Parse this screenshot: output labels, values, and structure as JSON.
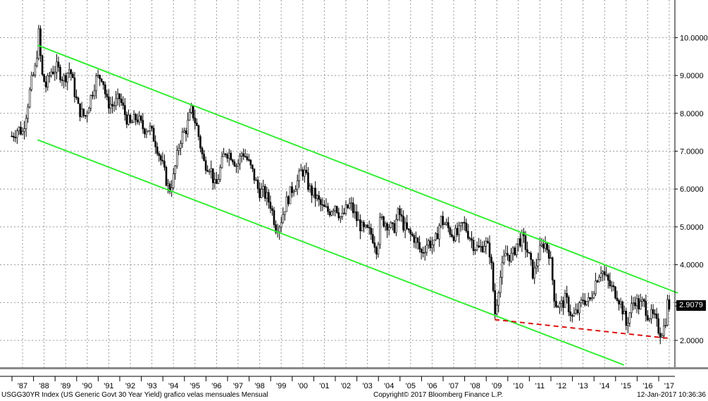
{
  "chart_data": {
    "type": "candlestick",
    "title": "",
    "xlabel": "",
    "ylabel": "",
    "ylim": [
      1.3,
      10.9
    ],
    "xlim": [
      1986.4,
      2017.4
    ],
    "y_ticks": [
      {
        "label": "2.0000",
        "value": 2.0
      },
      {
        "label": "3.0000",
        "value": 3.0
      },
      {
        "label": "4.0000",
        "value": 4.0
      },
      {
        "label": "5.0000",
        "value": 5.0
      },
      {
        "label": "6.0000",
        "value": 6.0
      },
      {
        "label": "7.0000",
        "value": 7.0
      },
      {
        "label": "8.0000",
        "value": 8.0
      },
      {
        "label": "9.0000",
        "value": 9.0
      },
      {
        "label": "10.0000",
        "value": 10.0
      }
    ],
    "x_ticks": [
      "'87",
      "'88",
      "'89",
      "'90",
      "'91",
      "'92",
      "'93",
      "'94",
      "'95",
      "'96",
      "'97",
      "'98",
      "'99",
      "'00",
      "'01",
      "'02",
      "'03",
      "'04",
      "'05",
      "'06",
      "'07",
      "'08",
      "'09",
      "'10",
      "'11",
      "'12",
      "'13",
      "'14",
      "'15",
      "'16",
      "'17"
    ],
    "grid": true,
    "series": [
      {
        "kind": "monthly-candles-close",
        "points": [
          [
            1986.5,
            7.4
          ],
          [
            1986.8,
            7.6
          ],
          [
            1987.0,
            7.5
          ],
          [
            1987.2,
            8.1
          ],
          [
            1987.4,
            8.8
          ],
          [
            1987.6,
            9.2
          ],
          [
            1987.75,
            10.1
          ],
          [
            1987.9,
            9.0
          ],
          [
            1988.1,
            8.7
          ],
          [
            1988.3,
            9.1
          ],
          [
            1988.6,
            9.2
          ],
          [
            1988.9,
            8.9
          ],
          [
            1989.2,
            9.2
          ],
          [
            1989.4,
            8.6
          ],
          [
            1989.6,
            8.1
          ],
          [
            1989.9,
            7.9
          ],
          [
            1990.1,
            8.3
          ],
          [
            1990.4,
            8.9
          ],
          [
            1990.7,
            9.0
          ],
          [
            1990.9,
            8.3
          ],
          [
            1991.2,
            8.2
          ],
          [
            1991.5,
            8.4
          ],
          [
            1991.8,
            7.9
          ],
          [
            1992.0,
            7.7
          ],
          [
            1992.3,
            7.9
          ],
          [
            1992.6,
            7.6
          ],
          [
            1992.9,
            7.6
          ],
          [
            1993.2,
            7.2
          ],
          [
            1993.5,
            6.6
          ],
          [
            1993.8,
            5.95
          ],
          [
            1994.0,
            6.3
          ],
          [
            1994.3,
            7.3
          ],
          [
            1994.6,
            7.6
          ],
          [
            1994.85,
            8.1
          ],
          [
            1995.1,
            7.6
          ],
          [
            1995.4,
            6.7
          ],
          [
            1995.7,
            6.6
          ],
          [
            1995.95,
            6.0
          ],
          [
            1996.2,
            6.6
          ],
          [
            1996.4,
            7.0
          ],
          [
            1996.7,
            6.9
          ],
          [
            1996.95,
            6.6
          ],
          [
            1997.2,
            7.0
          ],
          [
            1997.4,
            6.8
          ],
          [
            1997.7,
            6.4
          ],
          [
            1997.95,
            5.95
          ],
          [
            1998.2,
            5.9
          ],
          [
            1998.5,
            5.6
          ],
          [
            1998.75,
            5.0
          ],
          [
            1998.95,
            5.1
          ],
          [
            1999.2,
            5.6
          ],
          [
            1999.5,
            6.0
          ],
          [
            1999.75,
            6.2
          ],
          [
            1999.95,
            6.5
          ],
          [
            2000.1,
            6.4
          ],
          [
            2000.3,
            6.0
          ],
          [
            2000.6,
            5.8
          ],
          [
            2000.9,
            5.5
          ],
          [
            2001.2,
            5.4
          ],
          [
            2001.5,
            5.6
          ],
          [
            2001.8,
            5.2
          ],
          [
            2001.95,
            5.4
          ],
          [
            2002.2,
            5.6
          ],
          [
            2002.5,
            5.2
          ],
          [
            2002.8,
            4.9
          ],
          [
            2002.95,
            4.9
          ],
          [
            2003.2,
            4.8
          ],
          [
            2003.45,
            4.4
          ],
          [
            2003.6,
            5.2
          ],
          [
            2003.9,
            5.1
          ],
          [
            2004.2,
            4.9
          ],
          [
            2004.45,
            5.4
          ],
          [
            2004.7,
            5.0
          ],
          [
            2004.95,
            4.8
          ],
          [
            2005.2,
            4.7
          ],
          [
            2005.5,
            4.3
          ],
          [
            2005.8,
            4.6
          ],
          [
            2006.1,
            4.5
          ],
          [
            2006.4,
            5.2
          ],
          [
            2006.7,
            5.0
          ],
          [
            2006.95,
            4.8
          ],
          [
            2007.2,
            4.8
          ],
          [
            2007.45,
            5.1
          ],
          [
            2007.7,
            4.8
          ],
          [
            2007.95,
            4.5
          ],
          [
            2008.2,
            4.4
          ],
          [
            2008.45,
            4.6
          ],
          [
            2008.7,
            4.3
          ],
          [
            2008.92,
            2.7
          ],
          [
            2009.1,
            3.5
          ],
          [
            2009.4,
            4.3
          ],
          [
            2009.7,
            4.2
          ],
          [
            2009.95,
            4.6
          ],
          [
            2010.2,
            4.7
          ],
          [
            2010.45,
            4.3
          ],
          [
            2010.7,
            3.7
          ],
          [
            2010.95,
            4.3
          ],
          [
            2011.2,
            4.6
          ],
          [
            2011.45,
            4.3
          ],
          [
            2011.7,
            3.0
          ],
          [
            2011.95,
            2.9
          ],
          [
            2012.2,
            3.1
          ],
          [
            2012.5,
            2.6
          ],
          [
            2012.8,
            2.8
          ],
          [
            2013.0,
            3.1
          ],
          [
            2013.3,
            3.0
          ],
          [
            2013.6,
            3.6
          ],
          [
            2013.85,
            3.9
          ],
          [
            2014.0,
            3.7
          ],
          [
            2014.3,
            3.4
          ],
          [
            2014.6,
            3.2
          ],
          [
            2014.85,
            2.8
          ],
          [
            2015.0,
            2.4
          ],
          [
            2015.2,
            2.8
          ],
          [
            2015.4,
            3.1
          ],
          [
            2015.6,
            2.9
          ],
          [
            2015.8,
            3.0
          ],
          [
            2016.0,
            2.7
          ],
          [
            2016.3,
            2.6
          ],
          [
            2016.5,
            2.3
          ],
          [
            2016.6,
            2.2
          ],
          [
            2016.8,
            2.4
          ],
          [
            2016.92,
            3.0
          ],
          [
            2017.0,
            2.9079
          ]
        ]
      }
    ],
    "trendlines": [
      {
        "name": "",
        "color": "#33ee33",
        "style": "solid",
        "from": [
          1987.7,
          9.8
        ],
        "to": [
          2017.4,
          3.25
        ]
      },
      {
        "name": "",
        "color": "#33ee33",
        "style": "solid",
        "from": [
          1987.7,
          7.3
        ],
        "to": [
          2014.9,
          1.35
        ]
      },
      {
        "name": "",
        "color": "#dd1111",
        "style": "dashed",
        "from": [
          2008.9,
          2.55
        ],
        "to": [
          2017.05,
          2.05
        ]
      }
    ],
    "last_value": {
      "label": "2.9079",
      "value": 2.9079
    }
  },
  "footer": {
    "left": "USGG30YR Index (US Generic Govt 30 Year Yield) grafico velas mensuales  Mensual",
    "center": "Copyright© 2017 Bloomberg Finance L.P.",
    "right": "12-Jan-2017 10:36:36"
  }
}
